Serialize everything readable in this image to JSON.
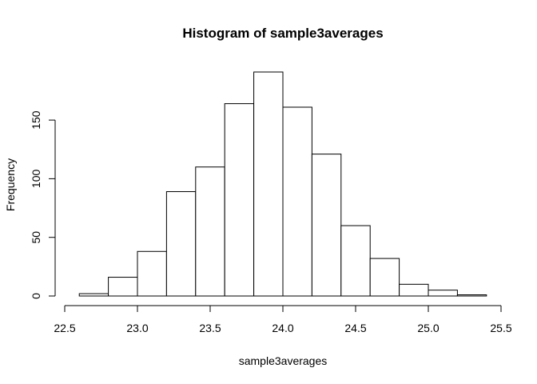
{
  "chart_data": {
    "type": "bar",
    "title": "Histogram of sample3averages",
    "xlabel": "sample3averages",
    "ylabel": "Frequency",
    "bin_edges": [
      22.6,
      22.8,
      23.0,
      23.2,
      23.4,
      23.6,
      23.8,
      24.0,
      24.2,
      24.4,
      24.6,
      24.8,
      25.0,
      25.2,
      25.4
    ],
    "values": [
      2,
      16,
      38,
      89,
      110,
      164,
      191,
      161,
      121,
      60,
      32,
      10,
      5,
      1
    ],
    "xlim": [
      22.5,
      25.5
    ],
    "ylim": [
      0,
      191
    ],
    "x_ticks": [
      "22.5",
      "23.0",
      "23.5",
      "24.0",
      "24.5",
      "25.0",
      "25.5"
    ],
    "y_ticks": [
      "0",
      "50",
      "100",
      "150"
    ],
    "grid": false,
    "bar_fill": "#ffffff",
    "bar_stroke": "#000000"
  }
}
